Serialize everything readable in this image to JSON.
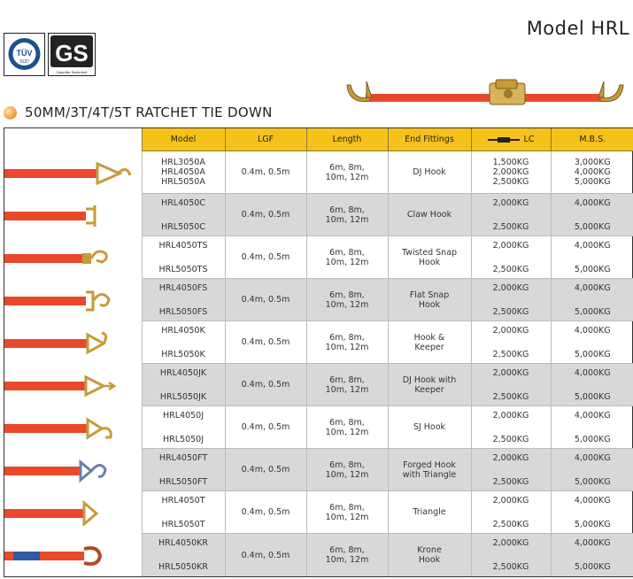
{
  "header": {
    "model_title": "Model HRL",
    "logos": {
      "tuv_text": "TÜV",
      "tuv_sub": "SÜD",
      "gs_text": "GS",
      "gs_sub": "Geprüfte Sicherheit"
    },
    "section_title": "50MM/3T/4T/5T RATCHET TIE DOWN",
    "accent_color": "#f6c21a",
    "strap_color": "#e8492a"
  },
  "table": {
    "columns": {
      "model": "Model",
      "lgf": "LGF",
      "length": "Length",
      "end_fittings": "End Fittings",
      "lc": "LC",
      "mbs": "M.B.S."
    },
    "rows": [
      {
        "fitting_icon": "dj-hook-icon",
        "models": [
          "HRL3050A",
          "HRL4050A",
          "HRL5050A"
        ],
        "lgf": "0.4m, 0.5m",
        "length_1": "6m, 8m,",
        "length_2": "10m, 12m",
        "end_1": "DJ Hook",
        "end_2": "",
        "lc": [
          "1,500KG",
          "2,000KG",
          "2,500KG"
        ],
        "mbs": [
          "3,000KG",
          "4,000KG",
          "5,000KG"
        ]
      },
      {
        "fitting_icon": "claw-hook-icon",
        "models": [
          "HRL4050C",
          "HRL5050C"
        ],
        "lgf": "0.4m, 0.5m",
        "length_1": "6m, 8m,",
        "length_2": "10m, 12m",
        "end_1": "Claw Hook",
        "end_2": "",
        "lc": [
          "2,000KG",
          "2,500KG"
        ],
        "mbs": [
          "4,000KG",
          "5,000KG"
        ]
      },
      {
        "fitting_icon": "twisted-snap-hook-icon",
        "models": [
          "HRL4050TS",
          "HRL5050TS"
        ],
        "lgf": "0.4m, 0.5m",
        "length_1": "6m, 8m,",
        "length_2": "10m, 12m",
        "end_1": "Twisted Snap",
        "end_2": "Hook",
        "lc": [
          "2,000KG",
          "2,500KG"
        ],
        "mbs": [
          "4,000KG",
          "5,000KG"
        ]
      },
      {
        "fitting_icon": "flat-snap-hook-icon",
        "models": [
          "HRL4050FS",
          "HRL5050FS"
        ],
        "lgf": "0.4m, 0.5m",
        "length_1": "6m, 8m,",
        "length_2": "10m, 12m",
        "end_1": "Flat Snap",
        "end_2": "Hook",
        "lc": [
          "2,000KG",
          "2,500KG"
        ],
        "mbs": [
          "4,000KG",
          "5,000KG"
        ]
      },
      {
        "fitting_icon": "hook-keeper-icon",
        "models": [
          "HRL4050K",
          "HRL5050K"
        ],
        "lgf": "0.4m, 0.5m",
        "length_1": "6m, 8m,",
        "length_2": "10m, 12m",
        "end_1": "Hook &",
        "end_2": "Keeper",
        "lc": [
          "2,000KG",
          "2,500KG"
        ],
        "mbs": [
          "4,000KG",
          "5,000KG"
        ]
      },
      {
        "fitting_icon": "dj-hook-keeper-icon",
        "models": [
          "HRL4050JK",
          "HRL5050JK"
        ],
        "lgf": "0.4m, 0.5m",
        "length_1": "6m, 8m,",
        "length_2": "10m, 12m",
        "end_1": "DJ Hook with",
        "end_2": "Keeper",
        "lc": [
          "2,000KG",
          "2,500KG"
        ],
        "mbs": [
          "4,000KG",
          "5,000KG"
        ]
      },
      {
        "fitting_icon": "sj-hook-icon",
        "models": [
          "HRL4050J",
          "HRL5050J"
        ],
        "lgf": "0.4m, 0.5m",
        "length_1": "6m, 8m,",
        "length_2": "10m, 12m",
        "end_1": "SJ Hook",
        "end_2": "",
        "lc": [
          "2,000KG",
          "2,500KG"
        ],
        "mbs": [
          "4,000KG",
          "5,000KG"
        ]
      },
      {
        "fitting_icon": "forged-hook-triangle-icon",
        "models": [
          "HRL4050FT",
          "HRL5050FT"
        ],
        "lgf": "0.4m, 0.5m",
        "length_1": "6m, 8m,",
        "length_2": "10m, 12m",
        "end_1": "Forged Hook",
        "end_2": "with Triangle",
        "lc": [
          "2,000KG",
          "2,500KG"
        ],
        "mbs": [
          "4,000KG",
          "5,000KG"
        ]
      },
      {
        "fitting_icon": "triangle-icon",
        "models": [
          "HRL4050T",
          "HRL5050T"
        ],
        "lgf": "0.4m, 0.5m",
        "length_1": "6m, 8m,",
        "length_2": "10m, 12m",
        "end_1": "Triangle",
        "end_2": "",
        "lc": [
          "2,000KG",
          "2,500KG"
        ],
        "mbs": [
          "4,000KG",
          "5,000KG"
        ]
      },
      {
        "fitting_icon": "krone-hook-icon",
        "models": [
          "HRL4050KR",
          "HRL5050KR"
        ],
        "lgf": "0.4m, 0.5m",
        "length_1": "6m, 8m,",
        "length_2": "10m, 12m",
        "end_1": "Krone",
        "end_2": "Hook",
        "lc": [
          "2,000KG",
          "2,500KG"
        ],
        "mbs": [
          "4,000KG",
          "5,000KG"
        ]
      }
    ]
  }
}
